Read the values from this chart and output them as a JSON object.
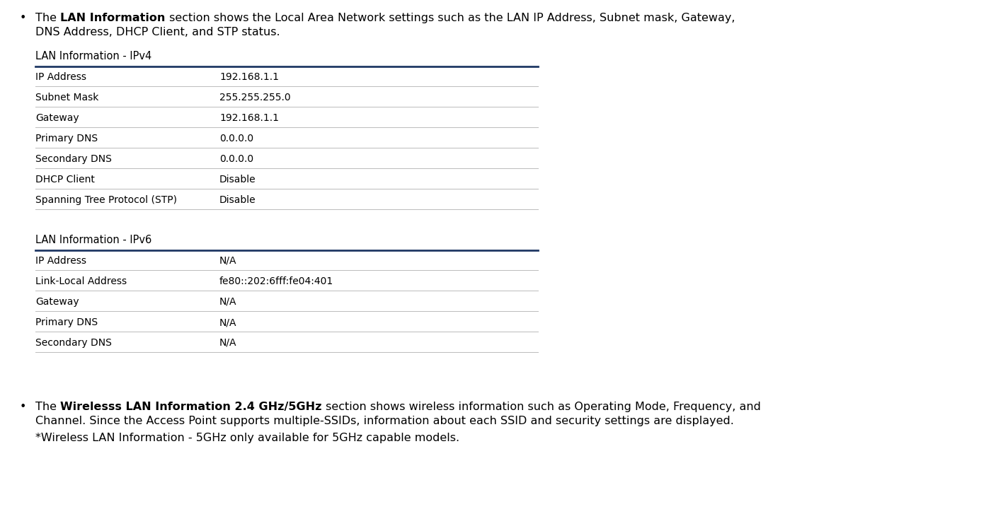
{
  "bg_color": "#ffffff",
  "text_color": "#000000",
  "bullet_color": "#000000",
  "table_header_line_color": "#1f3864",
  "table_row_line_color": "#bbbbbb",
  "font_size_body": 11.5,
  "font_size_small": 10.0,
  "font_size_section": 10.5,
  "bullet1_parts": [
    {
      "text": "The ",
      "bold": false
    },
    {
      "text": "LAN Information",
      "bold": true
    },
    {
      "text": " section shows the Local Area Network settings such as the LAN IP Address, Subnet mask, Gateway,",
      "bold": false
    }
  ],
  "bullet1_line2": "DNS Address, DHCP Client, and STP status.",
  "section1_title": "LAN Information - IPv4",
  "ipv4_rows": [
    [
      "IP Address",
      "192.168.1.1"
    ],
    [
      "Subnet Mask",
      "255.255.255.0"
    ],
    [
      "Gateway",
      "192.168.1.1"
    ],
    [
      "Primary DNS",
      "0.0.0.0"
    ],
    [
      "Secondary DNS",
      "0.0.0.0"
    ],
    [
      "DHCP Client",
      "Disable"
    ],
    [
      "Spanning Tree Protocol (STP)",
      "Disable"
    ]
  ],
  "section2_title": "LAN Information - IPv6",
  "ipv6_rows": [
    [
      "IP Address",
      "N/A"
    ],
    [
      "Link-Local Address",
      "fe80::202:6fff:fe04:401"
    ],
    [
      "Gateway",
      "N/A"
    ],
    [
      "Primary DNS",
      "N/A"
    ],
    [
      "Secondary DNS",
      "N/A"
    ]
  ],
  "bullet2_parts": [
    {
      "text": "The ",
      "bold": false
    },
    {
      "text": "Wirelesss LAN Information 2.4 GHz/5GHz",
      "bold": true
    },
    {
      "text": " section shows wireless information such as Operating Mode, Frequency, and",
      "bold": false
    }
  ],
  "bullet2_line2": "Channel. Since the Access Point supports multiple-SSIDs, information about each SSID and security settings are displayed.",
  "bullet2_line3": "*Wireless LAN Information - 5GHz only available for 5GHz capable models."
}
